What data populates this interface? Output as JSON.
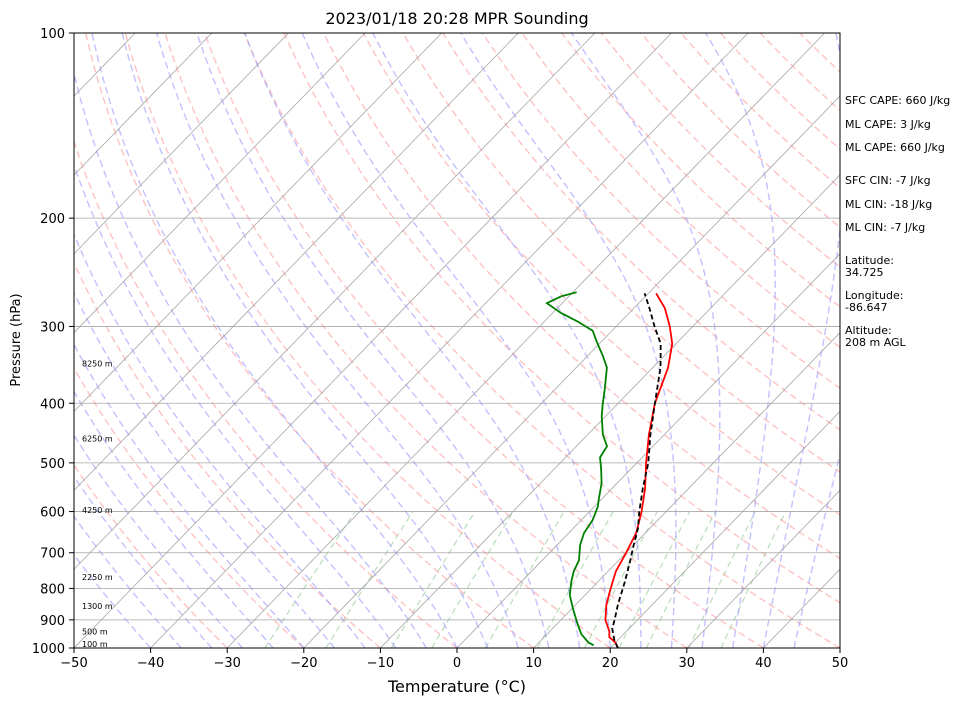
{
  "chart_data": {
    "type": "line",
    "title": "2023/01/18 20:28 MPR Sounding",
    "xlabel": "Temperature (°C)",
    "ylabel": "Pressure (hPa)",
    "xlim": [
      -50,
      50
    ],
    "ylim": [
      1000,
      100
    ],
    "y_scale": "log",
    "x_ticks": [
      "−50",
      "−40",
      "−30",
      "−20",
      "−10",
      "0",
      "10",
      "20",
      "30",
      "40",
      "50"
    ],
    "x_tick_values": [
      -50,
      -40,
      -30,
      -20,
      -10,
      0,
      10,
      20,
      30,
      40,
      50
    ],
    "y_ticks": [
      "1000",
      "900",
      "800",
      "700",
      "600",
      "500",
      "400",
      "300",
      "200",
      "100"
    ],
    "y_tick_values": [
      1000,
      900,
      800,
      700,
      600,
      500,
      400,
      300,
      200,
      100
    ],
    "height_labels": [
      {
        "p": 1000,
        "label": "100 m"
      },
      {
        "p": 955,
        "label": "500 m"
      },
      {
        "p": 868,
        "label": "1300 m"
      },
      {
        "p": 778,
        "label": "2250 m"
      },
      {
        "p": 605,
        "label": "4250 m"
      },
      {
        "p": 463,
        "label": "6250 m"
      },
      {
        "p": 350,
        "label": "8250 m"
      }
    ],
    "series": [
      {
        "role": "temperature",
        "color": "#ff0000",
        "points": [
          [
            21.0,
            1000
          ],
          [
            20.0,
            980
          ],
          [
            18.5,
            960
          ],
          [
            17.8,
            940
          ],
          [
            15.8,
            900
          ],
          [
            14.0,
            850
          ],
          [
            12.5,
            800
          ],
          [
            11.0,
            750
          ],
          [
            10.0,
            700
          ],
          [
            8.8,
            650
          ],
          [
            6.8,
            600
          ],
          [
            4.3,
            550
          ],
          [
            1.2,
            500
          ],
          [
            -2.0,
            450
          ],
          [
            -5.2,
            400
          ],
          [
            -8.0,
            350
          ],
          [
            -10.5,
            320
          ],
          [
            -13.0,
            300
          ],
          [
            -16.0,
            280
          ],
          [
            -19.0,
            265
          ]
        ]
      },
      {
        "role": "dewpoint",
        "color": "#008000",
        "points": [
          [
            17.5,
            990
          ],
          [
            16.5,
            980
          ],
          [
            14.5,
            950
          ],
          [
            13.0,
            920
          ],
          [
            12.0,
            900
          ],
          [
            10.0,
            860
          ],
          [
            8.5,
            830
          ],
          [
            8.0,
            820
          ],
          [
            6.5,
            780
          ],
          [
            5.5,
            750
          ],
          [
            4.8,
            720
          ],
          [
            3.0,
            680
          ],
          [
            2.0,
            650
          ],
          [
            1.5,
            620
          ],
          [
            0.5,
            590
          ],
          [
            -0.5,
            570
          ],
          [
            -2.0,
            540
          ],
          [
            -4.0,
            510
          ],
          [
            -5.5,
            490
          ],
          [
            -6.0,
            470
          ],
          [
            -8.0,
            450
          ],
          [
            -10.5,
            420
          ],
          [
            -12.0,
            400
          ],
          [
            -13.5,
            380
          ],
          [
            -16.0,
            350
          ],
          [
            -18.0,
            335
          ],
          [
            -19.5,
            325
          ],
          [
            -21.0,
            315
          ],
          [
            -22.5,
            305
          ],
          [
            -25.5,
            295
          ],
          [
            -29.0,
            285
          ],
          [
            -32.0,
            275
          ],
          [
            -31.0,
            268
          ],
          [
            -29.5,
            264
          ]
        ]
      },
      {
        "role": "parcel",
        "color": "#000000",
        "dashed": true,
        "points": [
          [
            21.0,
            1000
          ],
          [
            19.5,
            970
          ],
          [
            17.8,
            930
          ],
          [
            17.0,
            900
          ],
          [
            15.5,
            850
          ],
          [
            13.5,
            780
          ],
          [
            11.5,
            720
          ],
          [
            10.0,
            680
          ],
          [
            8.5,
            640
          ],
          [
            6.5,
            600
          ],
          [
            4.0,
            550
          ],
          [
            1.5,
            500
          ],
          [
            -1.8,
            450
          ],
          [
            -5.2,
            400
          ],
          [
            -9.0,
            350
          ],
          [
            -12.0,
            320
          ],
          [
            -15.0,
            300
          ],
          [
            -18.0,
            280
          ],
          [
            -20.5,
            265
          ]
        ]
      }
    ],
    "background": {
      "isotherm_color": "#a6a6a6",
      "dry_adiabat_color": "#ff9999",
      "moist_adiabat_color": "#9f9fff",
      "mixing_ratio_color": "#7fbf7f"
    }
  },
  "indices": {
    "sfc_cape": "SFC CAPE: 660 J/kg",
    "ml_cape_1": "ML CAPE: 3 J/kg",
    "ml_cape_2": "ML CAPE: 660 J/kg",
    "sfc_cin": "SFC CIN: -7 J/kg",
    "ml_cin_1": "ML CIN: -18 J/kg",
    "ml_cin_2": "ML CIN: -7 J/kg",
    "latitude": "Latitude:\n34.725",
    "longitude": "Longitude:\n-86.647",
    "altitude": "Altitude:\n208 m AGL"
  }
}
